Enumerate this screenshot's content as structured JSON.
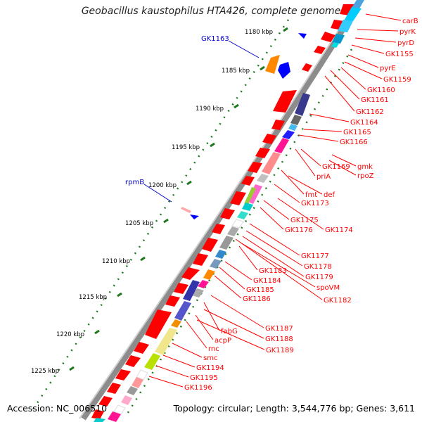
{
  "title": "Geobacillus kaustophilus HTA426, complete genome",
  "footer": {
    "accession": "Accession: NC_006510",
    "summary": "Topology: circular; Length: 3,544,776 bp; Genes: 3,611"
  },
  "colors": {
    "forward_strand": "#ff0000",
    "label_red": "#ff0000",
    "label_blue": "#0000cc",
    "axis_gray": "#8c8c8c",
    "tick_green": "#1f7a1f"
  },
  "ticks": [
    "1180 kbp",
    "1185 kbp",
    "1190 kbp",
    "1195 kbp",
    "1200 kbp",
    "1205 kbp",
    "1210 kbp",
    "1215 kbp",
    "1220 kbp",
    "1225 kbp"
  ],
  "right_labels": [
    "carB",
    "pyrK",
    "pyrD",
    "GK1155",
    "pyrE",
    "GK1159",
    "GK1160",
    "GK1161",
    "GK1162",
    "GK1164",
    "GK1165",
    "GK1166",
    "gmk",
    "GK1169",
    "rpoZ",
    "priA",
    "fmt",
    "def",
    "GK1173",
    "GK1175",
    "GK1176",
    "GK1174",
    "GK1177",
    "GK1178",
    "GK1179",
    "GK1183",
    "spoVM",
    "GK1184",
    "GK1185",
    "GK1186",
    "GK1182",
    "GK1187",
    "fabG",
    "GK1188",
    "acpP",
    "GK1189",
    "rnc",
    "smc",
    "GK1194",
    "GK1195",
    "GK1196"
  ],
  "left_labels": [
    "GK1163",
    "rpmB"
  ]
}
